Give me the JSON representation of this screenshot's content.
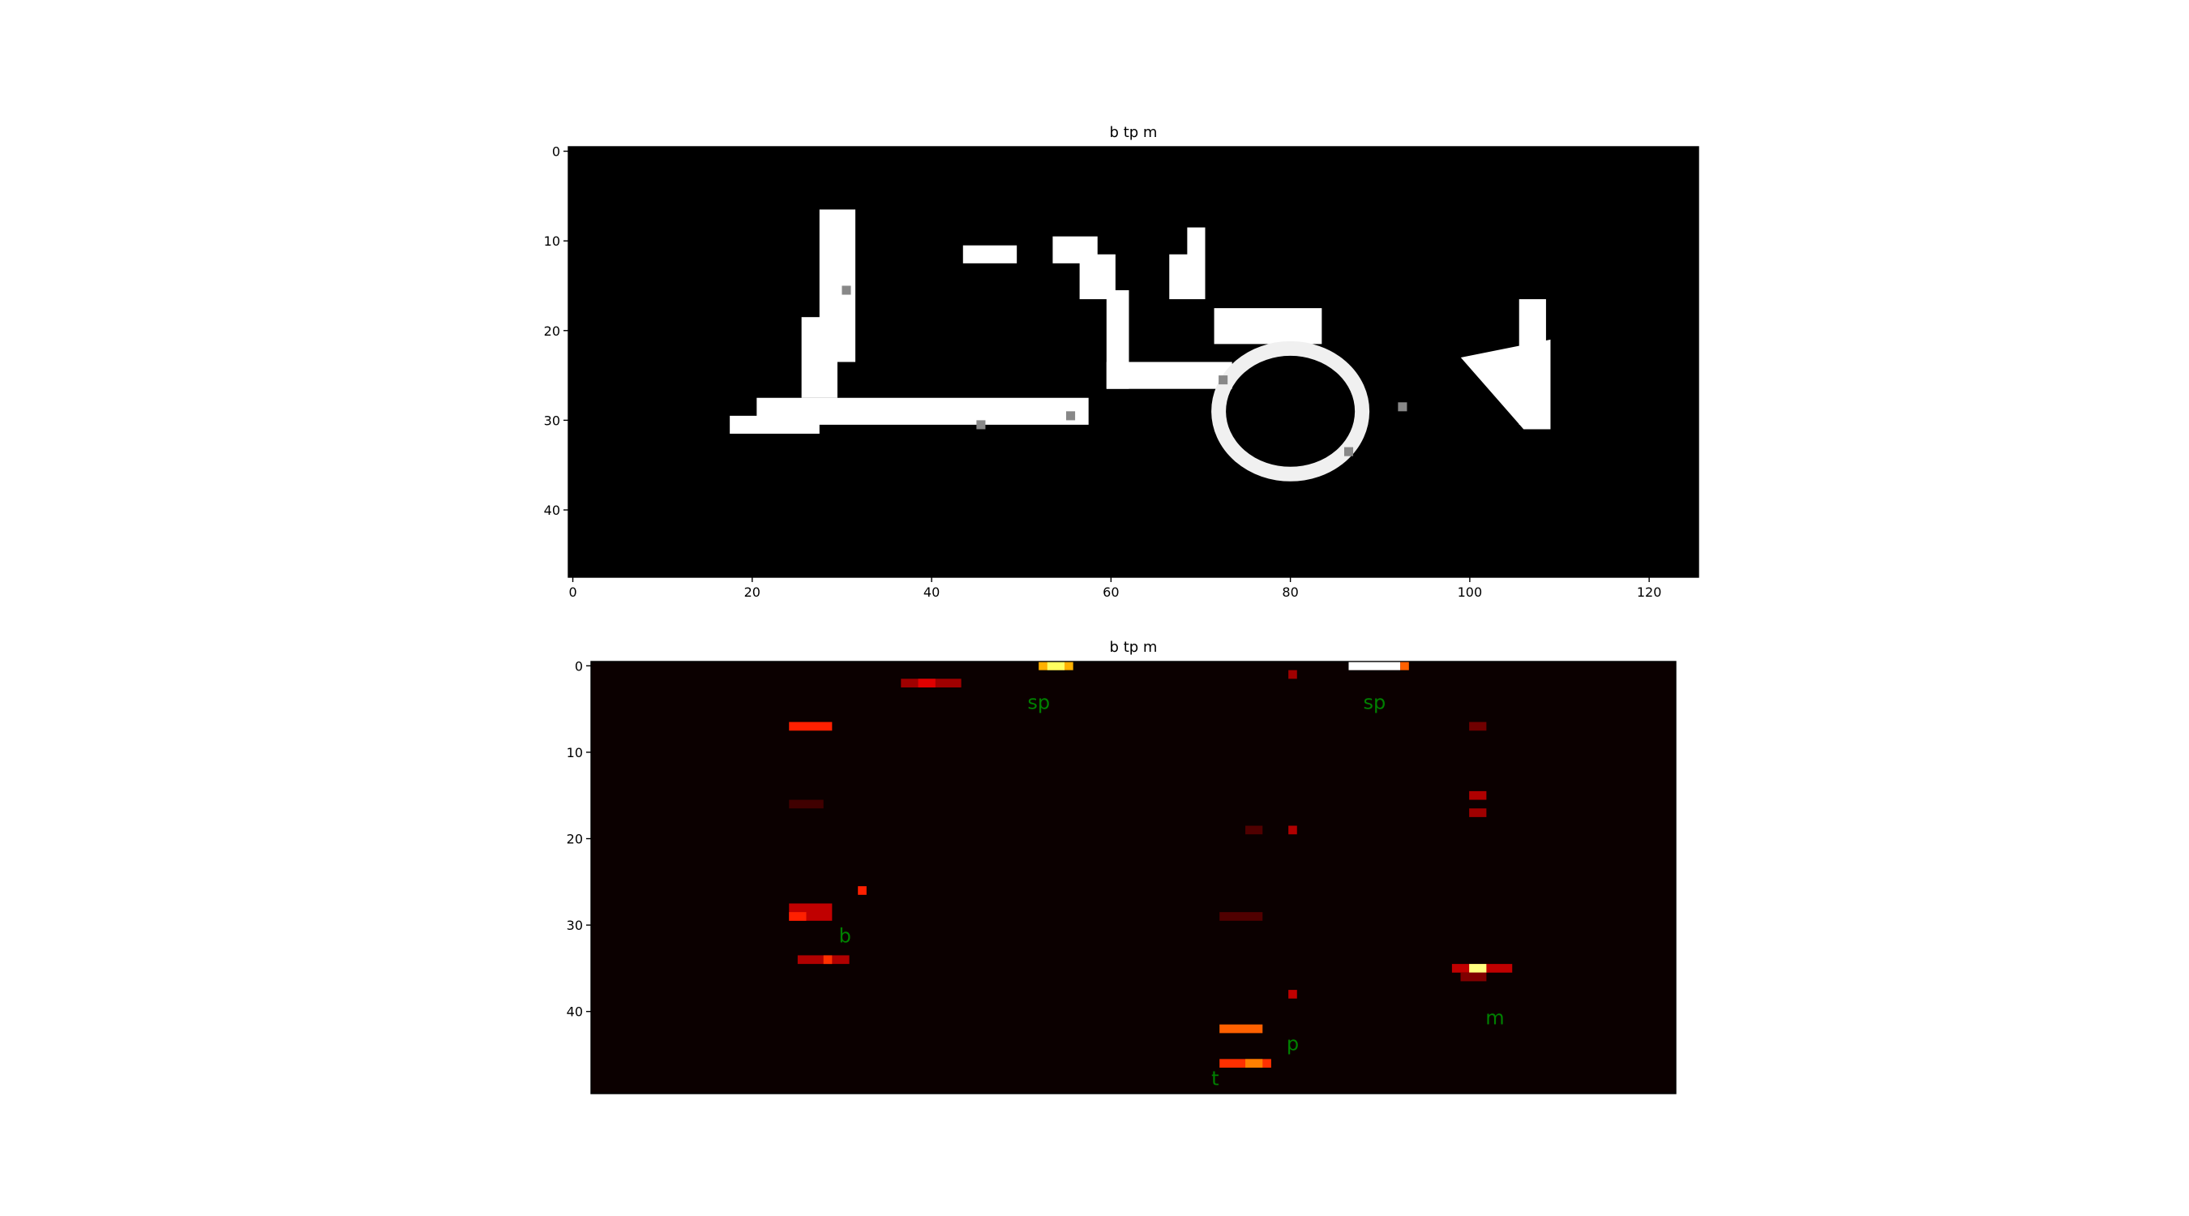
{
  "chart_data": [
    {
      "type": "image",
      "title": "b tp m",
      "xlim": [
        -0.5,
        125.5
      ],
      "ylim": [
        47.5,
        -0.5
      ],
      "xticks": [
        0,
        20,
        40,
        60,
        80,
        100,
        120
      ],
      "yticks": [
        0,
        10,
        20,
        30,
        40
      ]
    },
    {
      "type": "heatmap",
      "title": "b tp m",
      "xlim": [
        -0.5,
        125.5
      ],
      "ylim": [
        49.5,
        -0.5
      ],
      "yticks": [
        0,
        10,
        20,
        30,
        40
      ],
      "annotations": [
        "sp",
        "sp",
        "b",
        "m",
        "p",
        "t"
      ]
    }
  ]
}
